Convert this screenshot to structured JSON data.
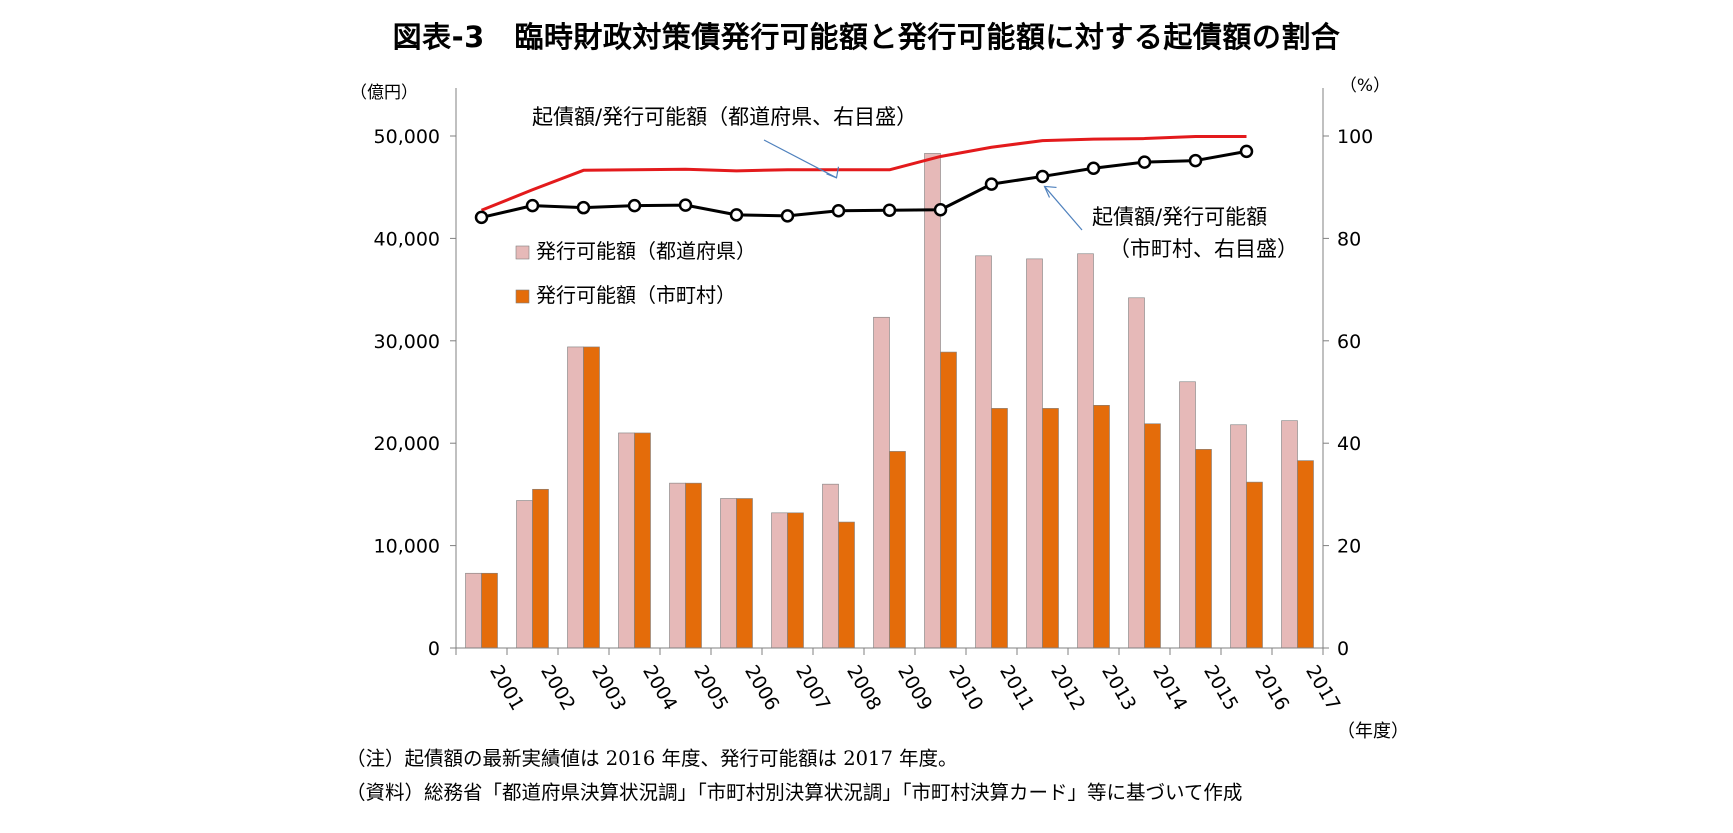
{
  "title": "図表-3　臨時財政対策債発行可能額と発行可能額に対する起債額の割合",
  "notes": [
    "（注）起債額の最新実績値は 2016 年度、発行可能額は 2017 年度。",
    "（資料）総務省「都道府県決算状況調」「市町村別決算状況調」「市町村決算カード」等に基づいて作成"
  ],
  "chart_data": {
    "type": "bar",
    "categories": [
      "2001",
      "2002",
      "2003",
      "2004",
      "2005",
      "2006",
      "2007",
      "2008",
      "2009",
      "2010",
      "2011",
      "2012",
      "2013",
      "2014",
      "2015",
      "2016",
      "2017"
    ],
    "xlabel": "（年度）",
    "ylabel_left": "（億円）",
    "ylabel_right": "（%）",
    "ylim_left": [
      0,
      50000
    ],
    "ylim_right": [
      0,
      100
    ],
    "yticks_left": [
      "0",
      "10,000",
      "20,000",
      "30,000",
      "40,000",
      "50,000"
    ],
    "yticks_right": [
      "0",
      "20",
      "40",
      "60",
      "80",
      "100"
    ],
    "grid": false,
    "legend_position": "top-left",
    "series": [
      {
        "name": "発行可能額（都道府県）",
        "kind": "bar",
        "axis": "left",
        "color": "#e6b9b8",
        "values": [
          7300,
          14400,
          29400,
          21000,
          16100,
          14600,
          13200,
          16000,
          32300,
          48300,
          38300,
          38000,
          38500,
          34200,
          26000,
          21800,
          22200
        ]
      },
      {
        "name": "発行可能額（市町村）",
        "kind": "bar",
        "axis": "left",
        "color": "#e46c0a",
        "values": [
          7300,
          15500,
          29400,
          21000,
          16100,
          14600,
          13200,
          12300,
          19200,
          28900,
          23400,
          23400,
          23700,
          21900,
          19400,
          16200,
          18300
        ]
      },
      {
        "name": "起債額/発行可能額（都道府県、右目盛）",
        "kind": "line",
        "axis": "right",
        "color": "#e31a1c",
        "marker": false,
        "values": [
          85.5,
          89.5,
          93.3,
          93.4,
          93.5,
          93.2,
          93.4,
          93.4,
          93.4,
          96.0,
          97.8,
          99.1,
          99.4,
          99.5,
          99.9,
          99.9,
          null
        ]
      },
      {
        "name": "起債額/発行可能額（市町村、右目盛）",
        "kind": "line",
        "axis": "right",
        "color": "#000000",
        "marker": true,
        "values": [
          84.1,
          86.4,
          86.0,
          86.4,
          86.5,
          84.6,
          84.4,
          85.4,
          85.5,
          85.6,
          90.6,
          92.1,
          93.7,
          94.9,
          95.2,
          97.0,
          null
        ]
      }
    ],
    "annotations": [
      {
        "text": "起債額/発行可能額（都道府県、右目盛）",
        "points_to_index": 7,
        "series_index": 2
      },
      {
        "text_lines": [
          "起債額/発行可能額",
          "（市町村、右目盛）"
        ],
        "points_to_index": 11,
        "series_index": 3
      }
    ]
  }
}
